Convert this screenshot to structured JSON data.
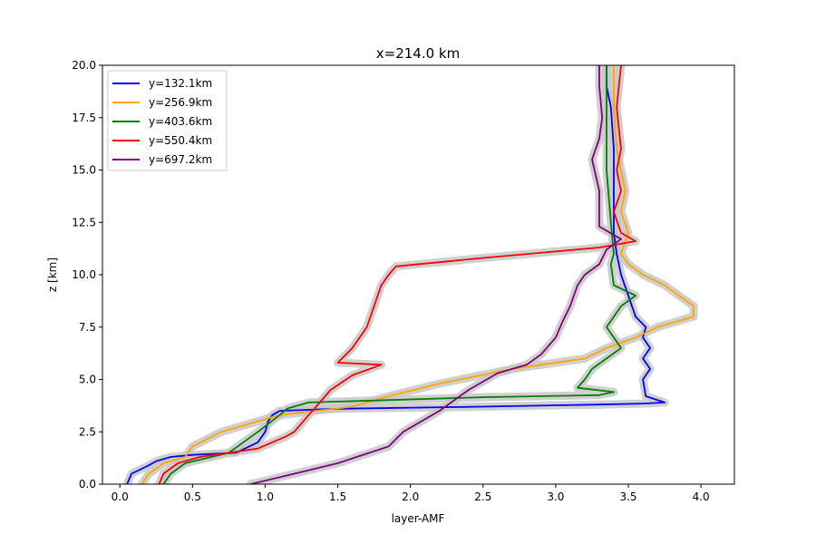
{
  "chart_data": {
    "type": "line",
    "title": "x=214.0 km",
    "xlabel": "layer-AMF",
    "ylabel": "z [km]",
    "xlim": [
      -0.12,
      4.23
    ],
    "ylim": [
      0,
      20
    ],
    "xticks": [
      "0.0",
      "0.5",
      "1.0",
      "1.5",
      "2.0",
      "2.5",
      "3.0",
      "3.5",
      "4.0"
    ],
    "yticks": [
      "0.0",
      "2.5",
      "5.0",
      "7.5",
      "10.0",
      "12.5",
      "15.0",
      "17.5",
      "20.0"
    ],
    "grid": false,
    "legend_position": "upper-left",
    "uncertainty_band_color": "#c8c8c8",
    "series": [
      {
        "name": "y=132.1km",
        "color": "#0000ff",
        "x": [
          0.05,
          0.08,
          0.2,
          0.25,
          0.35,
          0.5,
          0.8,
          0.95,
          1.0,
          1.02,
          1.05,
          1.1,
          1.5,
          2.5,
          3.3,
          3.6,
          3.75,
          3.62,
          3.6,
          3.65,
          3.6,
          3.65,
          3.6,
          3.62,
          3.55,
          3.5,
          3.45,
          3.42,
          3.4,
          3.4,
          3.4,
          3.38,
          3.35,
          3.35
        ],
        "y": [
          0.0,
          0.5,
          0.9,
          1.1,
          1.3,
          1.4,
          1.5,
          2.0,
          2.5,
          3.0,
          3.3,
          3.5,
          3.6,
          3.7,
          3.8,
          3.85,
          3.9,
          4.2,
          5.0,
          5.5,
          6.0,
          6.5,
          7.0,
          7.5,
          8.0,
          9.0,
          10.0,
          11.0,
          12.0,
          14.0,
          16.0,
          18.0,
          19.0,
          20.0
        ]
      },
      {
        "name": "y=256.9km",
        "color": "#ffa500",
        "x": [
          0.15,
          0.2,
          0.3,
          0.45,
          0.5,
          0.7,
          0.9,
          1.1,
          1.6,
          1.85,
          2.2,
          2.7,
          3.2,
          3.35,
          3.55,
          3.7,
          3.95,
          3.95,
          3.85,
          3.75,
          3.6,
          3.5,
          3.45,
          3.5,
          3.45,
          3.48,
          3.45,
          3.42,
          3.4,
          3.4
        ],
        "y": [
          0.0,
          0.5,
          1.0,
          1.3,
          1.8,
          2.5,
          2.9,
          3.3,
          3.7,
          4.2,
          4.8,
          5.5,
          6.0,
          6.5,
          7.0,
          7.5,
          8.0,
          8.5,
          9.0,
          9.5,
          10.0,
          10.5,
          11.0,
          12.0,
          13.0,
          14.0,
          15.0,
          16.0,
          18.0,
          20.0
        ]
      },
      {
        "name": "y=403.6km",
        "color": "#008000",
        "x": [
          0.3,
          0.35,
          0.45,
          0.75,
          0.85,
          0.95,
          1.1,
          1.15,
          1.3,
          2.5,
          3.3,
          3.4,
          3.15,
          3.2,
          3.25,
          3.35,
          3.45,
          3.35,
          3.4,
          3.45,
          3.55,
          3.4,
          3.38,
          3.4,
          3.38,
          3.35,
          3.35
        ],
        "y": [
          0.0,
          0.5,
          1.0,
          1.5,
          2.0,
          2.5,
          3.3,
          3.6,
          3.9,
          4.15,
          4.25,
          4.4,
          4.6,
          5.0,
          5.5,
          6.0,
          6.5,
          7.5,
          8.0,
          8.5,
          9.0,
          9.5,
          10.5,
          11.0,
          12.5,
          15.0,
          20.0
        ]
      },
      {
        "name": "y=550.4km",
        "color": "#ff0000",
        "x": [
          0.27,
          0.3,
          0.4,
          0.55,
          0.75,
          0.95,
          1.05,
          1.15,
          1.2,
          1.3,
          1.45,
          1.6,
          1.8,
          1.5,
          1.6,
          1.7,
          1.75,
          1.8,
          1.85,
          1.9,
          2.5,
          3.3,
          3.55,
          3.45,
          3.4,
          3.45,
          3.42,
          3.45,
          3.42,
          3.45
        ],
        "y": [
          0.0,
          0.5,
          1.0,
          1.3,
          1.5,
          1.7,
          2.0,
          2.3,
          2.5,
          3.3,
          4.5,
          5.2,
          5.7,
          5.8,
          6.5,
          7.5,
          8.5,
          9.5,
          10.0,
          10.4,
          10.8,
          11.3,
          11.6,
          12.0,
          13.0,
          14.0,
          15.0,
          16.0,
          18.0,
          20.0
        ]
      },
      {
        "name": "y=697.2km",
        "color": "#800080",
        "x": [
          0.9,
          1.2,
          1.5,
          1.85,
          1.95,
          2.2,
          2.4,
          2.6,
          2.8,
          2.9,
          3.0,
          3.05,
          3.1,
          3.15,
          3.2,
          3.3,
          3.35,
          3.45,
          3.3,
          3.3,
          3.3,
          3.25,
          3.3,
          3.32,
          3.3,
          3.3
        ],
        "y": [
          0.0,
          0.5,
          1.0,
          1.8,
          2.5,
          3.5,
          4.5,
          5.3,
          5.7,
          6.2,
          7.0,
          7.8,
          8.5,
          9.5,
          10.0,
          10.5,
          11.2,
          11.7,
          12.3,
          13.0,
          14.0,
          15.5,
          16.5,
          17.5,
          19.0,
          20.0
        ]
      }
    ]
  }
}
